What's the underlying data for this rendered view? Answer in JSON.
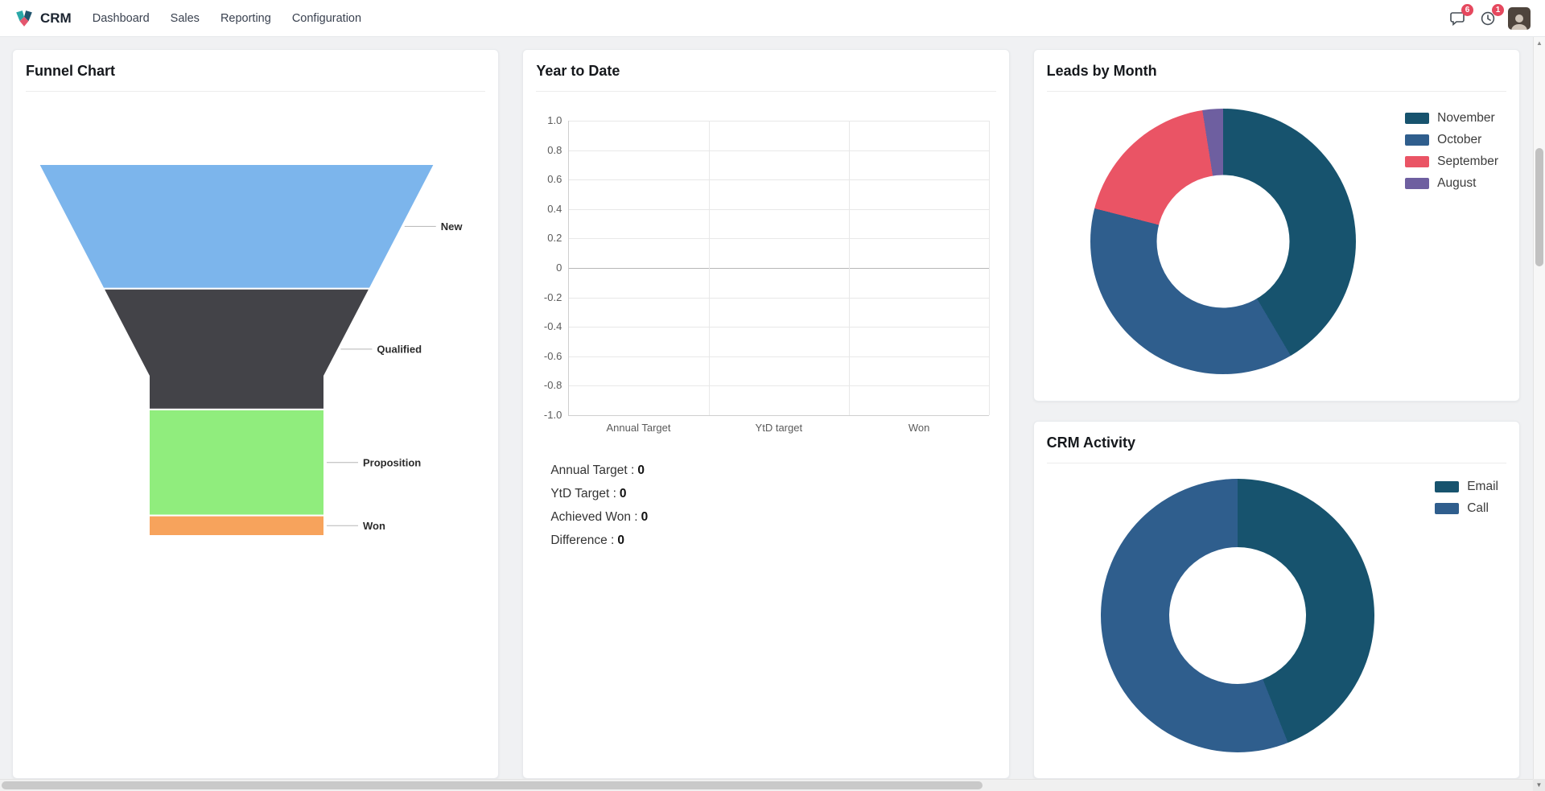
{
  "navbar": {
    "app_name": "CRM",
    "menu": [
      "Dashboard",
      "Sales",
      "Reporting",
      "Configuration"
    ],
    "systray": {
      "messages_badge": "6",
      "activities_badge": "1"
    }
  },
  "icons": {
    "app": "crm-diamond-icon",
    "messages": "chat-bubble-icon",
    "activities": "clock-icon",
    "scroll_up": "▲",
    "scroll_down": "▼"
  },
  "colors": {
    "badge": "#e5485e",
    "page_background": "#f0f1f3",
    "card_background": "#ffffff"
  },
  "cards": {
    "funnel": {
      "title": "Funnel Chart"
    },
    "ytd": {
      "title": "Year to Date",
      "stats": [
        {
          "label": "Annual Target :",
          "value": "0"
        },
        {
          "label": "YtD Target :",
          "value": "0"
        },
        {
          "label": "Achieved Won :",
          "value": "0"
        },
        {
          "label": "Difference :",
          "value": "0"
        }
      ]
    },
    "leads": {
      "title": "Leads by Month"
    },
    "activity": {
      "title": "CRM Activity"
    }
  },
  "chart_data": [
    {
      "id": "funnel",
      "type": "funnel",
      "title": "Funnel Chart",
      "neck_width_pct": 44,
      "neck_start_pct": 57,
      "stages": [
        {
          "label": "New",
          "color": "#7cb5ec",
          "height_pct": 33.5
        },
        {
          "label": "Qualified",
          "color": "#434348",
          "height_pct": 32.5
        },
        {
          "label": "Proposition",
          "color": "#90ed7d",
          "height_pct": 28.5
        },
        {
          "label": "Won",
          "color": "#f7a35c",
          "height_pct": 5.5
        }
      ]
    },
    {
      "id": "ytd",
      "type": "bar",
      "title": "Year to Date",
      "categories": [
        "Annual Target",
        "YtD target",
        "Won"
      ],
      "values": [
        0,
        0,
        0
      ],
      "ylim": [
        -1.0,
        1.0
      ],
      "ytick_labels": [
        "1.0",
        "0.8",
        "0.6",
        "0.4",
        "0.2",
        "0",
        "-0.2",
        "-0.4",
        "-0.6",
        "-0.8",
        "-1.0"
      ],
      "grid": true,
      "legend_position": "none"
    },
    {
      "id": "leads_by_month",
      "type": "pie",
      "title": "Leads by Month",
      "hole": 0.5,
      "legend_position": "right",
      "slices": [
        {
          "label": "November",
          "pct": 41.5,
          "color": "#17536e"
        },
        {
          "label": "October",
          "pct": 37.5,
          "color": "#2f5e8d"
        },
        {
          "label": "September",
          "pct": 18.5,
          "color": "#ea5465"
        },
        {
          "label": "August",
          "pct": 2.5,
          "color": "#6e5fa0"
        }
      ]
    },
    {
      "id": "crm_activity",
      "type": "pie",
      "title": "CRM Activity",
      "hole": 0.5,
      "legend_position": "right",
      "slices": [
        {
          "label": "Email",
          "pct": 44,
          "color": "#17536e"
        },
        {
          "label": "Call",
          "pct": 56,
          "color": "#2f5e8d"
        }
      ]
    }
  ]
}
